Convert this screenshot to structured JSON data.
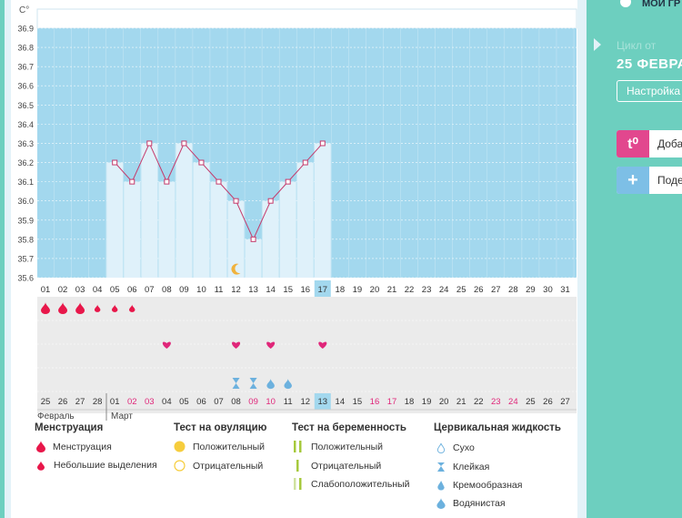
{
  "chart_data": {
    "type": "line",
    "y_unit": "C°",
    "ylim": [
      35.6,
      36.9
    ],
    "y_ticks": [
      "36.9",
      "36.8",
      "36.7",
      "36.6",
      "36.5",
      "36.4",
      "36.3",
      "36.2",
      "36.1",
      "36.0",
      "35.9",
      "35.8",
      "35.7",
      "35.6"
    ],
    "x_day_labels": [
      "01",
      "02",
      "03",
      "04",
      "05",
      "06",
      "07",
      "08",
      "09",
      "10",
      "11",
      "12",
      "13",
      "14",
      "15",
      "16",
      "17",
      "18",
      "19",
      "20",
      "21",
      "22",
      "23",
      "24",
      "25",
      "26",
      "27",
      "28",
      "29",
      "30",
      "31"
    ],
    "highlighted_day": "17",
    "series": [
      {
        "x": [
          5,
          6,
          7,
          8,
          9,
          10,
          11,
          12,
          13,
          14,
          15,
          16,
          17
        ],
        "values": [
          36.2,
          36.1,
          36.3,
          36.1,
          36.3,
          36.2,
          36.1,
          36.0,
          35.8,
          36.0,
          36.1,
          36.2,
          36.3
        ]
      }
    ]
  },
  "unit_label": "C°",
  "colors": {
    "chart_bg": "#a3d8ee",
    "bar_fill": "#dff1fa",
    "line": "#c53a6b",
    "moon": "#f0b23c",
    "blood": "#e8174a",
    "heart": "#e0277a",
    "drop": "#6cb1de",
    "teal": "#6dcfbf"
  },
  "rows": {
    "menstruation": [
      {
        "day": 1,
        "size": "large"
      },
      {
        "day": 2,
        "size": "large"
      },
      {
        "day": 3,
        "size": "large"
      },
      {
        "day": 4,
        "size": "small"
      },
      {
        "day": 5,
        "size": "small"
      },
      {
        "day": 6,
        "size": "small"
      }
    ],
    "hearts": [
      8,
      12,
      14,
      17
    ],
    "cervical": [
      {
        "day": 12,
        "kind": "sticky-icon"
      },
      {
        "day": 13,
        "kind": "sticky-icon"
      },
      {
        "day": 14,
        "kind": "drop"
      },
      {
        "day": 15,
        "kind": "drop"
      }
    ],
    "moon_day": 12
  },
  "dates_row": [
    {
      "t": "25",
      "red": false
    },
    {
      "t": "26",
      "red": false
    },
    {
      "t": "27",
      "red": false
    },
    {
      "t": "28",
      "red": false
    },
    {
      "t": "01",
      "red": false
    },
    {
      "t": "02",
      "red": true
    },
    {
      "t": "03",
      "red": true
    },
    {
      "t": "04",
      "red": false
    },
    {
      "t": "05",
      "red": false
    },
    {
      "t": "06",
      "red": false
    },
    {
      "t": "07",
      "red": false
    },
    {
      "t": "08",
      "red": false
    },
    {
      "t": "09",
      "red": true
    },
    {
      "t": "10",
      "red": true
    },
    {
      "t": "11",
      "red": false
    },
    {
      "t": "12",
      "red": false
    },
    {
      "t": "13",
      "red": false,
      "highlight": true
    },
    {
      "t": "14",
      "red": false
    },
    {
      "t": "15",
      "red": false
    },
    {
      "t": "16",
      "red": true
    },
    {
      "t": "17",
      "red": true
    },
    {
      "t": "18",
      "red": false
    },
    {
      "t": "19",
      "red": false
    },
    {
      "t": "20",
      "red": false
    },
    {
      "t": "21",
      "red": false
    },
    {
      "t": "22",
      "red": false
    },
    {
      "t": "23",
      "red": true
    },
    {
      "t": "24",
      "red": true
    },
    {
      "t": "25",
      "red": false
    },
    {
      "t": "26",
      "red": false
    },
    {
      "t": "27",
      "red": false
    }
  ],
  "months": {
    "feb": "Февраль",
    "mar": "Март"
  },
  "legend": {
    "menstruation": {
      "title": "Менструация",
      "items": [
        "Менструация",
        "Небольшие выделения"
      ]
    },
    "ovulation": {
      "title": "Тест на овуляцию",
      "items": [
        "Положительный",
        "Отрицательный"
      ]
    },
    "pregnancy": {
      "title": "Тест на беременность",
      "items": [
        "Положительный",
        "Отрицательный",
        "Слабоположительный"
      ]
    },
    "cervical": {
      "title": "Цервикальная жидкость",
      "items": [
        "Сухо",
        "Клейкая",
        "Кремообразная",
        "Водянистая"
      ]
    }
  },
  "side": {
    "top_label": "МОИ ГР",
    "cycle_label": "Цикл от",
    "cycle_date": "25 ФЕВРА",
    "settings": "Настройка",
    "add_temp": "Доба",
    "add_temp_icon": "t⁰",
    "share": "Поде",
    "share_icon": "+"
  }
}
